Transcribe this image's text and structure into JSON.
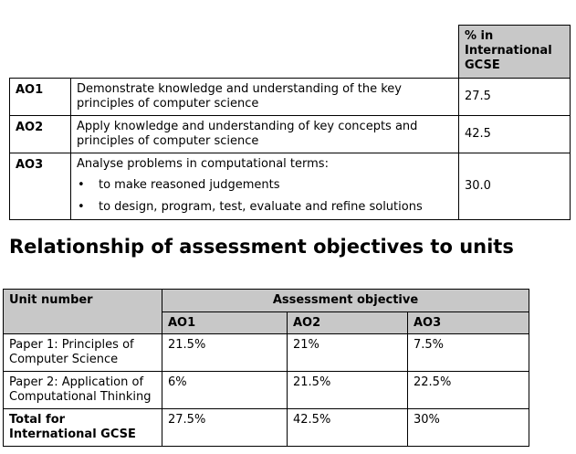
{
  "ao_table": {
    "header_pct": "% in International GCSE",
    "rows": [
      {
        "code": "AO1",
        "description": "Demonstrate knowledge and understanding of the key principles of computer science",
        "percent": "27.5"
      },
      {
        "code": "AO2",
        "description": "Apply knowledge and understanding of key concepts and principles of computer science",
        "percent": "42.5"
      },
      {
        "code": "AO3",
        "description": "Analyse problems in computational terms:",
        "bullets": [
          "to make reasoned judgements",
          "to design, program, test, evaluate and refine solutions"
        ],
        "percent": "30.0"
      }
    ]
  },
  "section_heading": "Relationship of assessment objectives to units",
  "units_table": {
    "unit_header": "Unit number",
    "objective_header": "Assessment objective",
    "ao_columns": [
      "AO1",
      "AO2",
      "AO3"
    ],
    "rows": [
      {
        "unit": "Paper 1: Principles of Computer Science",
        "values": [
          "21.5%",
          "21%",
          "7.5%"
        ]
      },
      {
        "unit": "Paper 2: Application of Computational Thinking",
        "values": [
          "6%",
          "21.5%",
          "22.5%"
        ]
      }
    ],
    "total": {
      "unit": "Total for International GCSE",
      "values": [
        "27.5%",
        "42.5%",
        "30%"
      ]
    }
  },
  "colors": {
    "header_fill": "#c8c8c8",
    "border": "#000000",
    "text": "#000000"
  }
}
